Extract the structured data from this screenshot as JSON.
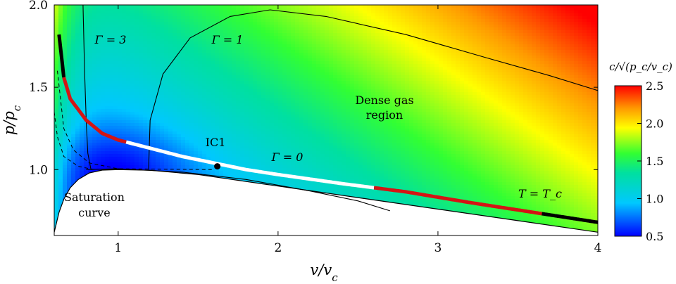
{
  "chart_data": {
    "type": "heatmap",
    "xlabel": "v/v_c",
    "ylabel": "p/p_c",
    "xlim": [
      0.6,
      4.0
    ],
    "ylim": [
      0.6,
      2.0
    ],
    "x_ticks": [
      "1",
      "2",
      "3",
      "4"
    ],
    "y_ticks": [
      "1.0",
      "1.5",
      "2.0"
    ],
    "colorbar": {
      "title": "c/√(p_c/v_c)",
      "range": [
        0.5,
        2.5
      ],
      "ticks": [
        "0.5",
        "1.0",
        "1.5",
        "2.0",
        "2.5"
      ]
    },
    "annotations": {
      "gamma3": "Γ = 3",
      "gamma1": "Γ = 1",
      "gamma0": "Γ = 0",
      "dense_line1": "Dense gas",
      "dense_line2": "region",
      "ic1": "IC1",
      "tc": "T = T_c",
      "sat_line1": "Saturation",
      "sat_line2": "curve"
    },
    "ic1_point": {
      "x": 1.62,
      "y": 1.02
    },
    "isotherm_Tc": [
      [
        0.63,
        1.82
      ],
      [
        0.66,
        1.56
      ],
      [
        0.7,
        1.43
      ],
      [
        0.8,
        1.3
      ],
      [
        0.9,
        1.22
      ],
      [
        1.0,
        1.18
      ],
      [
        1.2,
        1.13
      ],
      [
        1.4,
        1.08
      ],
      [
        1.6,
        1.04
      ],
      [
        1.8,
        1.0
      ],
      [
        2.0,
        0.97
      ],
      [
        2.4,
        0.915
      ],
      [
        2.8,
        0.865
      ],
      [
        3.2,
        0.8
      ],
      [
        3.6,
        0.74
      ],
      [
        4.0,
        0.68
      ]
    ],
    "segments": [
      {
        "color": "#000000",
        "x_range": [
          0.63,
          0.66
        ]
      },
      {
        "color": "#d41414",
        "x_range": [
          0.66,
          1.05
        ]
      },
      {
        "color": "#ffffff",
        "x_range": [
          1.05,
          2.6
        ]
      },
      {
        "color": "#d41414",
        "x_range": [
          2.6,
          3.65
        ]
      },
      {
        "color": "#000000",
        "x_range": [
          3.65,
          4.0
        ]
      }
    ],
    "saturation_curve": [
      [
        0.6,
        0.62
      ],
      [
        0.63,
        0.74
      ],
      [
        0.66,
        0.82
      ],
      [
        0.7,
        0.89
      ],
      [
        0.75,
        0.94
      ],
      [
        0.82,
        0.98
      ],
      [
        0.9,
        0.997
      ],
      [
        1.0,
        1.0
      ],
      [
        1.2,
        0.996
      ],
      [
        1.5,
        0.97
      ],
      [
        2.0,
        0.9
      ],
      [
        2.5,
        0.83
      ],
      [
        3.0,
        0.76
      ],
      [
        3.5,
        0.69
      ],
      [
        4.0,
        0.62
      ]
    ],
    "gamma1_curve": [
      [
        1.19,
        1.0
      ],
      [
        1.2,
        1.3
      ],
      [
        1.28,
        1.58
      ],
      [
        1.45,
        1.8
      ],
      [
        1.7,
        1.93
      ],
      [
        1.95,
        1.97
      ],
      [
        2.3,
        1.93
      ],
      [
        2.8,
        1.82
      ],
      [
        3.3,
        1.68
      ],
      [
        3.7,
        1.57
      ],
      [
        4.0,
        1.48
      ]
    ],
    "gamma0_curve": [
      [
        0.8,
        1.0
      ],
      [
        1.0,
        1.005
      ],
      [
        1.4,
        0.985
      ],
      [
        1.8,
        0.94
      ],
      [
        2.2,
        0.87
      ],
      [
        2.5,
        0.81
      ],
      [
        2.7,
        0.75
      ]
    ],
    "gamma3_curve": [
      [
        0.78,
        2.0
      ],
      [
        0.79,
        1.6
      ],
      [
        0.8,
        1.3
      ],
      [
        0.81,
        1.1
      ],
      [
        0.83,
        1.0
      ]
    ],
    "sat_dashed_curve": [
      [
        0.62,
        1.6
      ],
      [
        0.66,
        1.25
      ],
      [
        0.72,
        1.12
      ],
      [
        0.82,
        1.04
      ],
      [
        1.0,
        1.005
      ],
      [
        1.6,
        1.0
      ]
    ],
    "sat_dashed_curve2": [
      [
        0.6,
        1.35
      ],
      [
        0.62,
        1.2
      ],
      [
        0.66,
        1.08
      ],
      [
        0.75,
        1.02
      ],
      [
        0.85,
        1.0
      ]
    ]
  }
}
